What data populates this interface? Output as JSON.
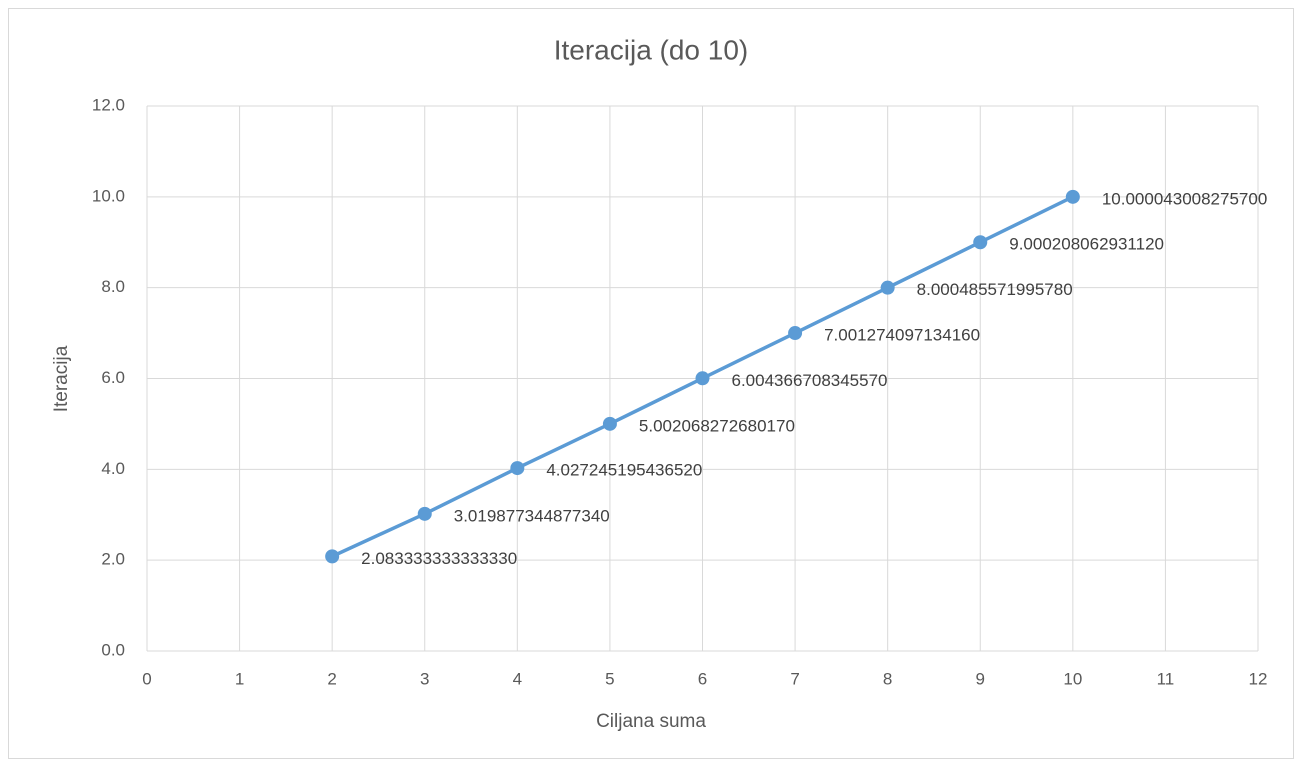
{
  "chart_data": {
    "type": "line",
    "title": "Iteracija (do 10)",
    "xlabel": "Ciljana suma",
    "ylabel": "Iteracija",
    "x": [
      2,
      3,
      4,
      5,
      6,
      7,
      8,
      9,
      10
    ],
    "series": [
      {
        "color": "#5b9bd5",
        "values": [
          2.08333333333333,
          3.01987734487734,
          4.02724519543652,
          5.00206827268017,
          6.00436670834557,
          7.00127409713416,
          8.00048557199578,
          9.00020806293112,
          10.0000430082757
        ],
        "value_labels": [
          "2.083333333333330",
          "3.019877344877340",
          "4.027245195436520",
          "5.002068272680170",
          "6.004366708345570",
          "7.001274097134160",
          "8.000485571995780",
          "9.000208062931120",
          "10.000043008275700"
        ]
      }
    ],
    "xlim": [
      0,
      12
    ],
    "xticks": [
      0,
      1,
      2,
      3,
      4,
      5,
      6,
      7,
      8,
      9,
      10,
      11,
      12
    ],
    "ylim": [
      0,
      12
    ],
    "yticks": [
      {
        "value": 0,
        "label": "0.0"
      },
      {
        "value": 2,
        "label": "2.0"
      },
      {
        "value": 4,
        "label": "4.0"
      },
      {
        "value": 6,
        "label": "6.0"
      },
      {
        "value": 8,
        "label": "8.0"
      },
      {
        "value": 10,
        "label": "10.0"
      },
      {
        "value": 12,
        "label": "12.0"
      }
    ],
    "grid": true
  }
}
